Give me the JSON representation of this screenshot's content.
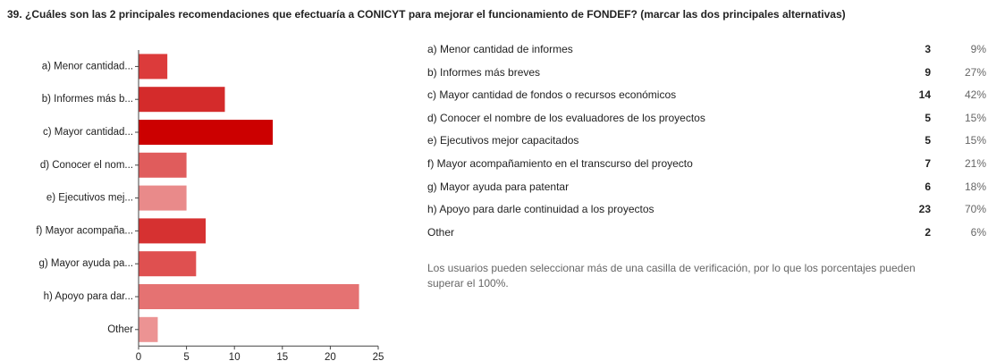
{
  "chart_data": {
    "type": "bar",
    "orientation": "horizontal",
    "title": "39. ¿Cuáles son las 2 principales recomendaciones que efectuaría a CONICYT para mejorar el funcionamiento de FONDEF? (marcar las dos principales alternativas)",
    "categories": [
      "a) Menor cantidad...",
      "b) Informes más b...",
      "c) Mayor cantidad...",
      "d) Conocer el nom...",
      "e) Ejecutivos mej...",
      "f) Mayor acompaña...",
      "g) Mayor ayuda pa...",
      "h) Apoyo para dar...",
      "Other"
    ],
    "values": [
      3,
      9,
      14,
      5,
      5,
      7,
      6,
      23,
      2
    ],
    "colors": [
      "#dc3b3b",
      "#d42b2b",
      "#cc0000",
      "#e05c5c",
      "#e98a8a",
      "#d63131",
      "#df5050",
      "#e57272",
      "#ec9393"
    ],
    "xlim": [
      0,
      25
    ],
    "xticks": [
      0,
      5,
      10,
      15,
      20,
      25
    ]
  },
  "table": {
    "rows": [
      [
        "a) Menor cantidad de informes",
        3,
        "9%"
      ],
      [
        "b) Informes más breves",
        9,
        "27%"
      ],
      [
        "c) Mayor cantidad de fondos o recursos económicos",
        14,
        "42%"
      ],
      [
        "d) Conocer el nombre de los evaluadores de los proyectos",
        5,
        "15%"
      ],
      [
        "e) Ejecutivos mejor capacitados",
        5,
        "15%"
      ],
      [
        "f) Mayor acompañamiento en el transcurso del proyecto",
        7,
        "21%"
      ],
      [
        "g) Mayor ayuda para patentar",
        6,
        "18%"
      ],
      [
        "h) Apoyo para darle continuidad a los proyectos",
        23,
        "70%"
      ],
      [
        "Other",
        2,
        "6%"
      ]
    ]
  },
  "note": "Los usuarios pueden seleccionar más de una casilla de verificación, por lo que los porcentajes pueden superar el 100%."
}
